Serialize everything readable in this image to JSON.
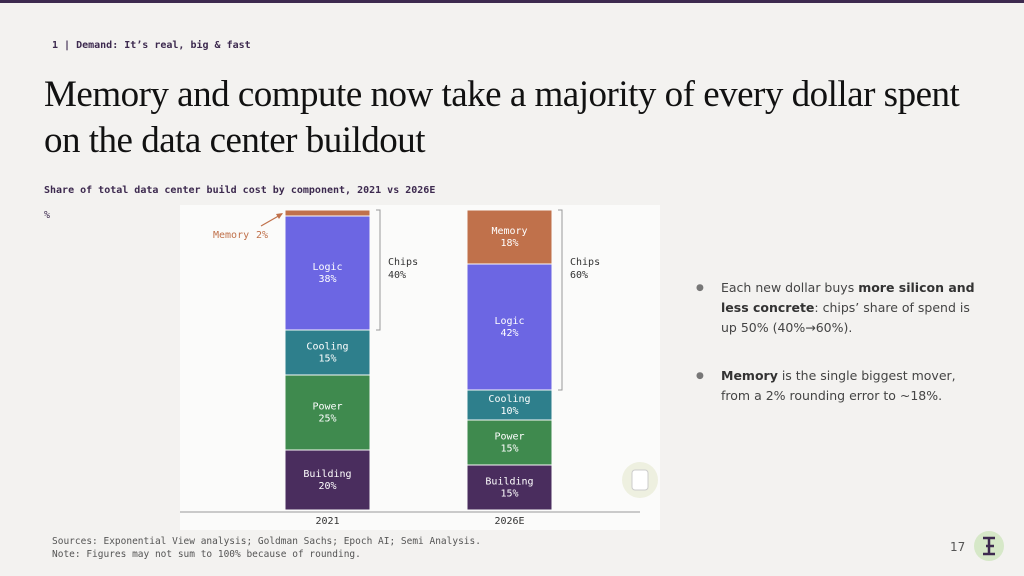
{
  "header": {
    "section": "1 | Demand: It’s real, big & fast",
    "title": "Memory and compute now take a majority of every dollar spent on the data center buildout"
  },
  "chart_data": {
    "type": "stacked_bar",
    "title": "Share of total data center build cost by component, 2021 vs 2026E",
    "ylabel": "%",
    "categories": [
      "2021",
      "2026E"
    ],
    "series": [
      {
        "name": "Building",
        "color": "#4a2d5e",
        "values": [
          20,
          15
        ],
        "value_labels": [
          "20%",
          "15%"
        ]
      },
      {
        "name": "Power",
        "color": "#3f8a4e",
        "values": [
          25,
          15
        ],
        "value_labels": [
          "25%",
          "15%"
        ]
      },
      {
        "name": "Cooling",
        "color": "#2e7f8c",
        "values": [
          15,
          10
        ],
        "value_labels": [
          "15%",
          "10%"
        ]
      },
      {
        "name": "Logic",
        "color": "#6c66e3",
        "values": [
          38,
          42
        ],
        "value_labels": [
          "38%",
          "42%"
        ]
      },
      {
        "name": "Memory",
        "color": "#c0714b",
        "values": [
          2,
          18
        ],
        "value_labels": [
          "2%",
          "18%"
        ]
      }
    ],
    "annotations": [
      {
        "text": "Chips",
        "value": 40,
        "value_label": "40%"
      },
      {
        "text": "Chips",
        "value": 60,
        "value_label": "60%"
      }
    ]
  },
  "bullets": [
    {
      "parts": [
        {
          "text": "Each new dollar buys "
        },
        {
          "text": "more silicon and less concrete",
          "bold": true
        },
        {
          "text": ": chips’ share of spend is up 50% (40%→60%)."
        }
      ]
    },
    {
      "parts": [
        {
          "text": "Memory",
          "bold": true
        },
        {
          "text": " is the single biggest mover, from a 2% rounding error to ~18%."
        }
      ]
    }
  ],
  "sources": [
    "Sources: Exponential View analysis; Goldman Sachs; Epoch AI; Semi Analysis.",
    "Note: Figures may not sum to 100% because of rounding."
  ],
  "page_number": "17"
}
